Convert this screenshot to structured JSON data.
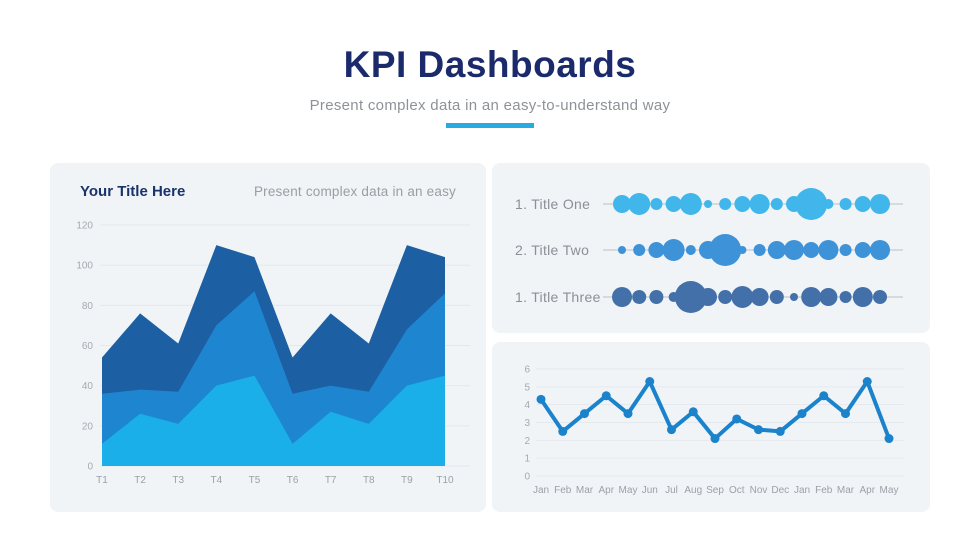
{
  "header": {
    "title": "KPI Dashboards",
    "subtitle": "Present complex data in an easy-to-understand way",
    "accent_color": "#29ABE2"
  },
  "left_panel": {
    "title": "Your Title Here",
    "subtitle": "Present complex data in an easy"
  },
  "chart_data": [
    {
      "type": "area",
      "title": "Your Title Here",
      "categories": [
        "T1",
        "T2",
        "T3",
        "T4",
        "T5",
        "T6",
        "T7",
        "T8",
        "T9",
        "T10"
      ],
      "series": [
        {
          "name": "dark-blue-area",
          "color": "#1C5FA3",
          "values": [
            54,
            76,
            61,
            110,
            104,
            54,
            76,
            61,
            110,
            104
          ]
        },
        {
          "name": "medium-blue-area",
          "color": "#1E86D0",
          "values": [
            36,
            38,
            37,
            70,
            87,
            36,
            40,
            37,
            68,
            86
          ]
        },
        {
          "name": "light-blue-area",
          "color": "#1AAFE9",
          "values": [
            11,
            26,
            21,
            40,
            45,
            11,
            27,
            21,
            40,
            45
          ]
        }
      ],
      "ylim": [
        0,
        120
      ],
      "yticks": [
        0,
        20,
        40,
        60,
        80,
        100,
        120
      ],
      "grid": true,
      "legend": "none"
    },
    {
      "type": "bubble-rows",
      "rows": [
        {
          "label": "1. Title One",
          "color": "#41B6EA",
          "radii": [
            9,
            11,
            6,
            8,
            11,
            4,
            6,
            8,
            10,
            6,
            8,
            16,
            5,
            6,
            8,
            10
          ]
        },
        {
          "label": "2. Title Two",
          "color": "#3E92D8",
          "radii": [
            4,
            6,
            8,
            11,
            5,
            9,
            16,
            4,
            6,
            9,
            10,
            8,
            10,
            6,
            8,
            10
          ]
        },
        {
          "label": "1. Title Three",
          "color": "#4370A8",
          "radii": [
            10,
            7,
            7,
            5,
            16,
            9,
            7,
            11,
            9,
            7,
            4,
            10,
            9,
            6,
            10,
            7
          ]
        }
      ],
      "line_color": "#CBD1D6"
    },
    {
      "type": "line",
      "x": [
        "Jan",
        "Feb",
        "Mar",
        "Apr",
        "May",
        "Jun",
        "Jul",
        "Aug",
        "Sep",
        "Oct",
        "Nov",
        "Dec",
        "Jan",
        "Feb",
        "Mar",
        "Apr",
        "May"
      ],
      "values": [
        4.3,
        2.5,
        3.5,
        4.5,
        3.5,
        5.3,
        2.6,
        3.6,
        2.1,
        3.2,
        2.6,
        2.5,
        3.5,
        4.5,
        3.5,
        5.3,
        2.1
      ],
      "color": "#1B82CC",
      "ylim": [
        0,
        6
      ],
      "yticks": [
        0,
        1,
        2,
        3,
        4,
        5,
        6
      ],
      "grid": true,
      "legend": "none"
    }
  ]
}
